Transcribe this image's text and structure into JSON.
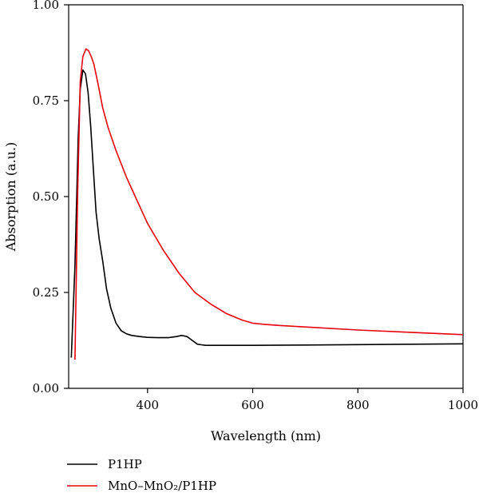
{
  "chart_data": {
    "type": "line",
    "title": "",
    "xlabel": "Wavelength (nm)",
    "ylabel": "Absorption (a.u.)",
    "xlim": [
      250,
      1000
    ],
    "ylim": [
      0,
      1.0
    ],
    "x_ticks": [
      400,
      600,
      800,
      1000
    ],
    "x_tick_labels": [
      "400",
      "600",
      "800",
      "1000"
    ],
    "y_ticks": [
      0,
      0.25,
      0.5,
      0.75,
      1.0
    ],
    "y_tick_labels": [
      "0.00",
      "0.25",
      "0.50",
      "0.75",
      "1.00"
    ],
    "grid": false,
    "legend_position": "bottom",
    "series": [
      {
        "name": "P1HP",
        "color": "#000000",
        "x": [
          255,
          262,
          268,
          272,
          277,
          282,
          287,
          292,
          297,
          302,
          308,
          315,
          322,
          330,
          340,
          350,
          360,
          370,
          385,
          400,
          420,
          440,
          455,
          465,
          475,
          485,
          495,
          510,
          550,
          600,
          700,
          800,
          900,
          1000
        ],
        "y": [
          0.08,
          0.32,
          0.65,
          0.78,
          0.83,
          0.82,
          0.77,
          0.68,
          0.57,
          0.46,
          0.39,
          0.33,
          0.26,
          0.21,
          0.17,
          0.15,
          0.142,
          0.138,
          0.135,
          0.133,
          0.132,
          0.132,
          0.135,
          0.138,
          0.135,
          0.125,
          0.115,
          0.112,
          0.112,
          0.112,
          0.113,
          0.114,
          0.115,
          0.116
        ]
      },
      {
        "name": "MnO–MnO₂/P1HP",
        "color": "#e8000b",
        "x": [
          262,
          267,
          272,
          277,
          283,
          288,
          293,
          298,
          305,
          315,
          325,
          340,
          360,
          380,
          400,
          430,
          460,
          490,
          520,
          550,
          580,
          600,
          620,
          650,
          700,
          800,
          900,
          1000
        ],
        "y": [
          0.075,
          0.5,
          0.8,
          0.865,
          0.885,
          0.88,
          0.865,
          0.845,
          0.8,
          0.73,
          0.68,
          0.62,
          0.55,
          0.49,
          0.43,
          0.36,
          0.3,
          0.25,
          0.22,
          0.195,
          0.178,
          0.17,
          0.167,
          0.164,
          0.16,
          0.152,
          0.146,
          0.14
        ]
      }
    ]
  }
}
